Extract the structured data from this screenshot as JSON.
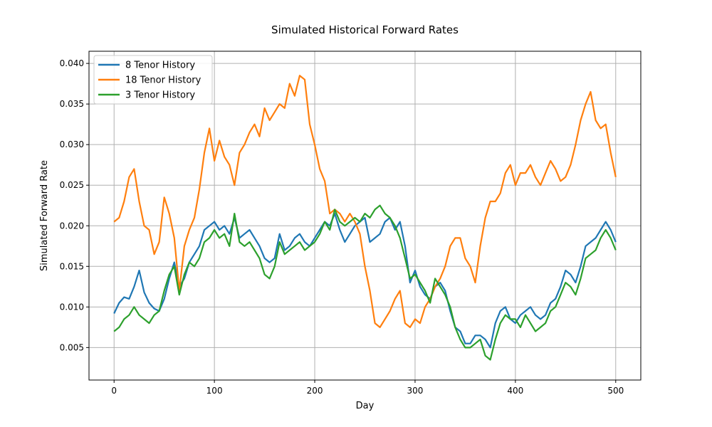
{
  "chart_data": {
    "type": "line",
    "title": "Simulated Historical Forward Rates",
    "xlabel": "Day",
    "ylabel": "Simulated Forward Rate",
    "xlim": [
      -25,
      525
    ],
    "ylim": [
      0.001,
      0.0415
    ],
    "xticks": [
      0,
      100,
      200,
      300,
      400,
      500
    ],
    "xtick_labels": [
      "0",
      "100",
      "200",
      "300",
      "400",
      "500"
    ],
    "yticks": [
      0.005,
      0.01,
      0.015,
      0.02,
      0.025,
      0.03,
      0.035,
      0.04
    ],
    "ytick_labels": [
      "0.005",
      "0.010",
      "0.015",
      "0.020",
      "0.025",
      "0.030",
      "0.035",
      "0.040"
    ],
    "grid": true,
    "legend_position": "top-left",
    "series": [
      {
        "name": "8 Tenor History",
        "color": "#1f77b4",
        "x": [
          0,
          5,
          10,
          15,
          20,
          25,
          30,
          35,
          40,
          45,
          50,
          55,
          60,
          65,
          70,
          75,
          80,
          85,
          90,
          95,
          100,
          105,
          110,
          115,
          120,
          125,
          130,
          135,
          140,
          145,
          150,
          155,
          160,
          165,
          170,
          175,
          180,
          185,
          190,
          195,
          200,
          205,
          210,
          215,
          220,
          225,
          230,
          235,
          240,
          245,
          250,
          255,
          260,
          265,
          270,
          275,
          280,
          285,
          290,
          295,
          300,
          305,
          310,
          315,
          320,
          325,
          330,
          335,
          340,
          345,
          350,
          355,
          360,
          365,
          370,
          375,
          380,
          385,
          390,
          395,
          400,
          405,
          410,
          415,
          420,
          425,
          430,
          435,
          440,
          445,
          450,
          455,
          460,
          465,
          470,
          475,
          480,
          485,
          490,
          495,
          500
        ],
        "y": [
          0.0092,
          0.0105,
          0.0112,
          0.011,
          0.0125,
          0.0145,
          0.0118,
          0.0105,
          0.0098,
          0.0095,
          0.011,
          0.0135,
          0.0155,
          0.0125,
          0.0135,
          0.0155,
          0.0165,
          0.0175,
          0.0195,
          0.02,
          0.0205,
          0.0195,
          0.02,
          0.019,
          0.021,
          0.0185,
          0.019,
          0.0195,
          0.0185,
          0.0175,
          0.016,
          0.0155,
          0.016,
          0.019,
          0.017,
          0.0175,
          0.0185,
          0.019,
          0.018,
          0.0175,
          0.0185,
          0.0195,
          0.0205,
          0.02,
          0.0215,
          0.0195,
          0.018,
          0.019,
          0.02,
          0.0205,
          0.021,
          0.018,
          0.0185,
          0.019,
          0.0205,
          0.021,
          0.0195,
          0.0205,
          0.0175,
          0.013,
          0.0145,
          0.0125,
          0.0115,
          0.011,
          0.0125,
          0.013,
          0.012,
          0.0095,
          0.0075,
          0.007,
          0.0055,
          0.0055,
          0.0065,
          0.0065,
          0.006,
          0.005,
          0.008,
          0.0095,
          0.01,
          0.0085,
          0.008,
          0.009,
          0.0095,
          0.01,
          0.009,
          0.0085,
          0.009,
          0.0105,
          0.011,
          0.0125,
          0.0145,
          0.014,
          0.013,
          0.015,
          0.0175,
          0.018,
          0.0185,
          0.0195,
          0.0205,
          0.0195,
          0.018
        ]
      },
      {
        "name": "18 Tenor History",
        "color": "#ff7f0e",
        "x": [
          0,
          5,
          10,
          15,
          20,
          25,
          30,
          35,
          40,
          45,
          50,
          55,
          60,
          65,
          70,
          75,
          80,
          85,
          90,
          95,
          100,
          105,
          110,
          115,
          120,
          125,
          130,
          135,
          140,
          145,
          150,
          155,
          160,
          165,
          170,
          175,
          180,
          185,
          190,
          195,
          200,
          205,
          210,
          215,
          220,
          225,
          230,
          235,
          240,
          245,
          250,
          255,
          260,
          265,
          270,
          275,
          280,
          285,
          290,
          295,
          300,
          305,
          310,
          315,
          320,
          325,
          330,
          335,
          340,
          345,
          350,
          355,
          360,
          365,
          370,
          375,
          380,
          385,
          390,
          395,
          400,
          405,
          410,
          415,
          420,
          425,
          430,
          435,
          440,
          445,
          450,
          455,
          460,
          465,
          470,
          475,
          480,
          485,
          490,
          495,
          500
        ],
        "y": [
          0.0205,
          0.021,
          0.023,
          0.026,
          0.027,
          0.023,
          0.02,
          0.0195,
          0.0165,
          0.018,
          0.0235,
          0.0215,
          0.0185,
          0.012,
          0.0175,
          0.0195,
          0.021,
          0.0245,
          0.029,
          0.032,
          0.028,
          0.0305,
          0.0285,
          0.0275,
          0.025,
          0.029,
          0.03,
          0.0315,
          0.0325,
          0.031,
          0.0345,
          0.033,
          0.034,
          0.035,
          0.0345,
          0.0375,
          0.036,
          0.0385,
          0.038,
          0.0325,
          0.03,
          0.027,
          0.0255,
          0.0215,
          0.022,
          0.0215,
          0.0205,
          0.0215,
          0.0205,
          0.019,
          0.015,
          0.012,
          0.008,
          0.0075,
          0.0085,
          0.0095,
          0.011,
          0.012,
          0.008,
          0.0075,
          0.0085,
          0.008,
          0.01,
          0.011,
          0.0125,
          0.0135,
          0.015,
          0.0175,
          0.0185,
          0.0185,
          0.016,
          0.015,
          0.013,
          0.0175,
          0.021,
          0.023,
          0.023,
          0.024,
          0.0265,
          0.0275,
          0.025,
          0.0265,
          0.0265,
          0.0275,
          0.026,
          0.025,
          0.0265,
          0.028,
          0.027,
          0.0255,
          0.026,
          0.0275,
          0.03,
          0.033,
          0.035,
          0.0365,
          0.033,
          0.032,
          0.0325,
          0.029,
          0.026
        ]
      },
      {
        "name": "3 Tenor History",
        "color": "#2ca02c",
        "x": [
          0,
          5,
          10,
          15,
          20,
          25,
          30,
          35,
          40,
          45,
          50,
          55,
          60,
          65,
          70,
          75,
          80,
          85,
          90,
          95,
          100,
          105,
          110,
          115,
          120,
          125,
          130,
          135,
          140,
          145,
          150,
          155,
          160,
          165,
          170,
          175,
          180,
          185,
          190,
          195,
          200,
          205,
          210,
          215,
          220,
          225,
          230,
          235,
          240,
          245,
          250,
          255,
          260,
          265,
          270,
          275,
          280,
          285,
          290,
          295,
          300,
          305,
          310,
          315,
          320,
          325,
          330,
          335,
          340,
          345,
          350,
          355,
          360,
          365,
          370,
          375,
          380,
          385,
          390,
          395,
          400,
          405,
          410,
          415,
          420,
          425,
          430,
          435,
          440,
          445,
          450,
          455,
          460,
          465,
          470,
          475,
          480,
          485,
          490,
          495,
          500
        ],
        "y": [
          0.007,
          0.0075,
          0.0085,
          0.009,
          0.01,
          0.009,
          0.0085,
          0.008,
          0.009,
          0.0095,
          0.012,
          0.014,
          0.015,
          0.0115,
          0.014,
          0.0155,
          0.015,
          0.016,
          0.018,
          0.0185,
          0.0195,
          0.0185,
          0.019,
          0.0175,
          0.0215,
          0.018,
          0.0175,
          0.018,
          0.017,
          0.016,
          0.014,
          0.0135,
          0.015,
          0.018,
          0.0165,
          0.017,
          0.0175,
          0.018,
          0.017,
          0.0175,
          0.018,
          0.019,
          0.0205,
          0.0195,
          0.022,
          0.0205,
          0.02,
          0.0205,
          0.021,
          0.0205,
          0.0215,
          0.021,
          0.022,
          0.0225,
          0.0215,
          0.021,
          0.02,
          0.0185,
          0.016,
          0.0135,
          0.014,
          0.013,
          0.012,
          0.0105,
          0.0135,
          0.0125,
          0.0115,
          0.01,
          0.0075,
          0.006,
          0.005,
          0.005,
          0.0055,
          0.006,
          0.004,
          0.0035,
          0.006,
          0.008,
          0.009,
          0.0085,
          0.0085,
          0.0075,
          0.009,
          0.008,
          0.007,
          0.0075,
          0.008,
          0.0095,
          0.01,
          0.0115,
          0.013,
          0.0125,
          0.0115,
          0.0135,
          0.016,
          0.0165,
          0.017,
          0.0185,
          0.0195,
          0.0185,
          0.017
        ]
      }
    ]
  }
}
